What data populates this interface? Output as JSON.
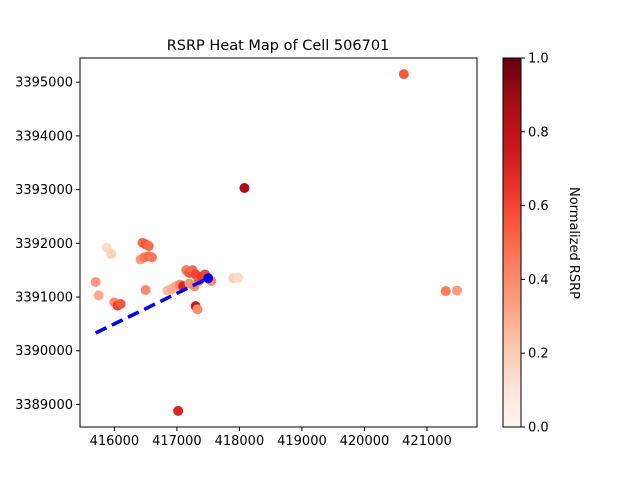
{
  "chart_data": {
    "type": "scatter",
    "title": "RSRP Heat Map of Cell 506701",
    "xlabel": "",
    "ylabel": "",
    "xlim": [
      415450,
      421800
    ],
    "ylim": [
      3388580,
      3395450
    ],
    "xticks": [
      416000,
      417000,
      418000,
      419000,
      420000,
      421000
    ],
    "yticks": [
      3389000,
      3390000,
      3391000,
      3392000,
      3393000,
      3394000,
      3395000
    ],
    "grid": false,
    "colorbar": {
      "label": "Normalized RSRP",
      "colormap": "Reds",
      "range": [
        0.0,
        1.0
      ],
      "ticks": [
        "0.0",
        "0.2",
        "0.4",
        "0.6",
        "0.8",
        "1.0"
      ]
    },
    "points": [
      {
        "x": 420630,
        "y": 3395150,
        "v": 0.55
      },
      {
        "x": 418080,
        "y": 3393030,
        "v": 0.85
      },
      {
        "x": 417020,
        "y": 3388880,
        "v": 0.7
      },
      {
        "x": 421300,
        "y": 3391110,
        "v": 0.45
      },
      {
        "x": 421480,
        "y": 3391120,
        "v": 0.35
      },
      {
        "x": 415700,
        "y": 3391280,
        "v": 0.35
      },
      {
        "x": 415750,
        "y": 3391030,
        "v": 0.3
      },
      {
        "x": 415880,
        "y": 3391920,
        "v": 0.15
      },
      {
        "x": 415950,
        "y": 3391800,
        "v": 0.18
      },
      {
        "x": 416000,
        "y": 3390900,
        "v": 0.4
      },
      {
        "x": 416050,
        "y": 3390840,
        "v": 0.62
      },
      {
        "x": 416100,
        "y": 3390870,
        "v": 0.55
      },
      {
        "x": 416420,
        "y": 3391700,
        "v": 0.35
      },
      {
        "x": 416450,
        "y": 3392010,
        "v": 0.5
      },
      {
        "x": 416500,
        "y": 3391980,
        "v": 0.55
      },
      {
        "x": 416550,
        "y": 3391950,
        "v": 0.5
      },
      {
        "x": 416480,
        "y": 3391740,
        "v": 0.45
      },
      {
        "x": 416550,
        "y": 3391760,
        "v": 0.5
      },
      {
        "x": 416600,
        "y": 3391740,
        "v": 0.45
      },
      {
        "x": 416500,
        "y": 3391130,
        "v": 0.4
      },
      {
        "x": 416850,
        "y": 3391120,
        "v": 0.25
      },
      {
        "x": 416920,
        "y": 3391150,
        "v": 0.3
      },
      {
        "x": 416980,
        "y": 3391200,
        "v": 0.3
      },
      {
        "x": 417050,
        "y": 3391230,
        "v": 0.4
      },
      {
        "x": 417100,
        "y": 3391200,
        "v": 0.7
      },
      {
        "x": 417150,
        "y": 3391500,
        "v": 0.45
      },
      {
        "x": 417200,
        "y": 3391450,
        "v": 0.55
      },
      {
        "x": 417250,
        "y": 3391500,
        "v": 0.5
      },
      {
        "x": 417300,
        "y": 3391420,
        "v": 0.6
      },
      {
        "x": 417350,
        "y": 3391300,
        "v": 0.55
      },
      {
        "x": 417400,
        "y": 3391380,
        "v": 0.65
      },
      {
        "x": 417450,
        "y": 3391420,
        "v": 0.6
      },
      {
        "x": 417500,
        "y": 3391350,
        "v": 0.45
      },
      {
        "x": 417550,
        "y": 3391300,
        "v": 0.4
      },
      {
        "x": 417200,
        "y": 3391250,
        "v": 0.35
      },
      {
        "x": 417280,
        "y": 3391200,
        "v": 0.4
      },
      {
        "x": 417300,
        "y": 3390830,
        "v": 0.75
      },
      {
        "x": 417330,
        "y": 3390770,
        "v": 0.4
      },
      {
        "x": 417900,
        "y": 3391350,
        "v": 0.18
      },
      {
        "x": 417980,
        "y": 3391360,
        "v": 0.15
      }
    ],
    "line": {
      "style": "dashed",
      "color": "#0000ee",
      "from": {
        "x": 415700,
        "y": 3390330
      },
      "to": {
        "x": 417500,
        "y": 3391350
      },
      "endpoint": {
        "x": 417500,
        "y": 3391350
      }
    }
  }
}
